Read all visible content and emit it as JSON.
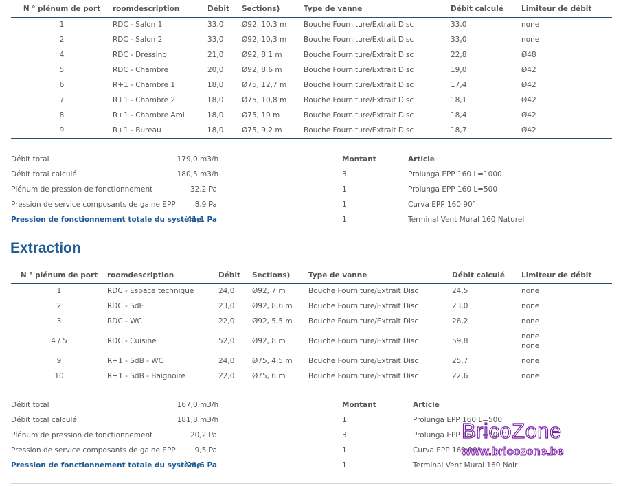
{
  "supply_table": {
    "headers": [
      "N ° plénum de port",
      "roomdescription",
      "Débit",
      "Sections)",
      "Type de vanne",
      "Débit calculé",
      "Limiteur de débit"
    ],
    "rows": [
      [
        "1",
        "RDC - Salon 1",
        "33,0",
        "Ø92, 10,3 m",
        "Bouche Fourniture/Extrait Disc",
        "33,0",
        "none"
      ],
      [
        "2",
        "RDC - Salon 2",
        "33,0",
        "Ø92, 10,3 m",
        "Bouche Fourniture/Extrait Disc",
        "33,0",
        "none"
      ],
      [
        "4",
        "RDC - Dressing",
        "21,0",
        "Ø92, 8,1 m",
        "Bouche Fourniture/Extrait Disc",
        "22,8",
        "Ø48"
      ],
      [
        "5",
        "RDC - Chambre",
        "20,0",
        "Ø92, 8,6 m",
        "Bouche Fourniture/Extrait Disc",
        "19,0",
        "Ø42"
      ],
      [
        "6",
        "R+1 - Chambre 1",
        "18,0",
        "Ø75, 12,7 m",
        "Bouche Fourniture/Extrait Disc",
        "17,4",
        "Ø42"
      ],
      [
        "7",
        "R+1 - Chambre 2",
        "18,0",
        "Ø75, 10,8 m",
        "Bouche Fourniture/Extrait Disc",
        "18,1",
        "Ø42"
      ],
      [
        "8",
        "R+1 - Chambre Ami",
        "18,0",
        "Ø75, 10 m",
        "Bouche Fourniture/Extrait Disc",
        "18,4",
        "Ø42"
      ],
      [
        "9",
        "R+1 - Bureau",
        "18,0",
        "Ø75, 9,2 m",
        "Bouche Fourniture/Extrait Disc",
        "18,7",
        "Ø42"
      ]
    ]
  },
  "supply_summary": [
    {
      "label": "Débit total",
      "value": "179,0 m3/h"
    },
    {
      "label": "Débit total calculé",
      "value": "180,5 m3/h"
    },
    {
      "label": "Plénum de pression de fonctionnement",
      "value": "32,2 Pa"
    },
    {
      "label": "Pression de service composants de gaine EPP",
      "value": "8,9 Pa"
    },
    {
      "label": "Pression de fonctionnement totale du système",
      "value": "41,1 Pa"
    }
  ],
  "supply_articles": {
    "headers": [
      "Montant",
      "Article"
    ],
    "rows": [
      [
        "3",
        "Prolunga EPP 160 L=1000"
      ],
      [
        "1",
        "Prolunga EPP 160 L=500"
      ],
      [
        "1",
        "Curva EPP 160 90°"
      ],
      [
        "1",
        "Terminal Vent Mural 160 Naturel"
      ]
    ]
  },
  "extraction_title": "Extraction",
  "extract_table": {
    "headers": [
      "N ° plénum de port",
      "roomdescription",
      "Débit",
      "Sections)",
      "Type de vanne",
      "Débit calculé",
      "Limiteur de débit"
    ],
    "rows": [
      {
        "port": "1",
        "room": "RDC - Espace technique",
        "debit": "24,0",
        "section": "Ø92, 7 m",
        "vanne": "Bouche Fourniture/Extrait Disc",
        "calc": "24,5",
        "lim": [
          "none"
        ]
      },
      {
        "port": "2",
        "room": "RDC - SdE",
        "debit": "23,0",
        "section": "Ø92, 8,6 m",
        "vanne": "Bouche Fourniture/Extrait Disc",
        "calc": "23,0",
        "lim": [
          "none"
        ]
      },
      {
        "port": "3",
        "room": "RDC - WC",
        "debit": "22,0",
        "section": "Ø92, 5,5 m",
        "vanne": "Bouche Fourniture/Extrait Disc",
        "calc": "26,2",
        "lim": [
          "none"
        ]
      },
      {
        "port": "4  /  5",
        "room": "RDC - Cuisine",
        "debit": "52,0",
        "section": "Ø92, 8 m",
        "vanne": "Bouche Fourniture/Extrait Disc",
        "calc": "59,8",
        "lim": [
          "none",
          "none"
        ]
      },
      {
        "port": "9",
        "room": "R+1 - SdB - WC",
        "debit": "24,0",
        "section": "Ø75, 4,5 m",
        "vanne": "Bouche Fourniture/Extrait Disc",
        "calc": "25,7",
        "lim": [
          "none"
        ]
      },
      {
        "port": "10",
        "room": "R+1 - SdB - Baignoire",
        "debit": "22,0",
        "section": "Ø75, 6 m",
        "vanne": "Bouche Fourniture/Extrait Disc",
        "calc": "22,6",
        "lim": [
          "none"
        ]
      }
    ]
  },
  "extract_summary": [
    {
      "label": "Débit total",
      "value": "167,0 m3/h"
    },
    {
      "label": "Débit total calculé",
      "value": "181,8 m3/h"
    },
    {
      "label": "Plénum de pression de fonctionnement",
      "value": "20,2 Pa"
    },
    {
      "label": "Pression de service composants de gaine EPP",
      "value": "9,5 Pa"
    },
    {
      "label": "Pression de fonctionnement totale du système",
      "value": "29,6 Pa"
    }
  ],
  "extract_articles": {
    "headers": [
      "Montant",
      "Article"
    ],
    "rows": [
      [
        "1",
        "Prolunga EPP 160 L=500"
      ],
      [
        "3",
        "Prolunga EPP 160 L=1000"
      ],
      [
        "1",
        "Curva EPP 160 90°"
      ],
      [
        "1",
        "Terminal Vent Mural 160 Noir"
      ]
    ]
  },
  "watermark": {
    "logo": "BricoZone",
    "url": "www.bricozone.be"
  }
}
